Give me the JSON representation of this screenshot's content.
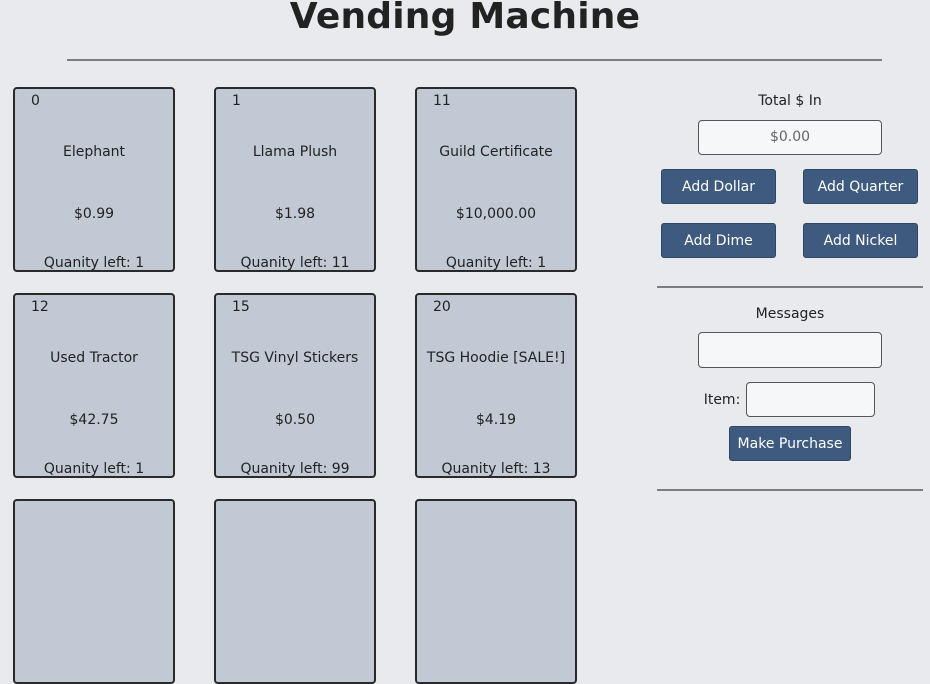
{
  "header": {
    "title": "Vending Machine"
  },
  "items": [
    {
      "id": "0",
      "name": "Elephant",
      "price": "$0.99",
      "quantity": "Quanity left: 1"
    },
    {
      "id": "1",
      "name": "Llama Plush",
      "price": "$1.98",
      "quantity": "Quanity left: 11"
    },
    {
      "id": "11",
      "name": "Guild Certificate",
      "price": "$10,000.00",
      "quantity": "Quanity left: 1"
    },
    {
      "id": "12",
      "name": "Used Tractor",
      "price": "$42.75",
      "quantity": "Quanity left: 1"
    },
    {
      "id": "15",
      "name": "TSG Vinyl Stickers",
      "price": "$0.50",
      "quantity": "Quanity left: 99"
    },
    {
      "id": "20",
      "name": "TSG Hoodie [SALE!]",
      "price": "$4.19",
      "quantity": "Quanity left: 13"
    }
  ],
  "money": {
    "label": "Total $ In",
    "value": "$0.00",
    "buttons": {
      "add_dollar": "Add Dollar",
      "add_quarter": "Add Quarter",
      "add_dime": "Add Dime",
      "add_nickel": "Add Nickel"
    }
  },
  "messages": {
    "label": "Messages",
    "value": "",
    "item_label": "Item:",
    "item_value": "",
    "purchase_button": "Make Purchase"
  }
}
